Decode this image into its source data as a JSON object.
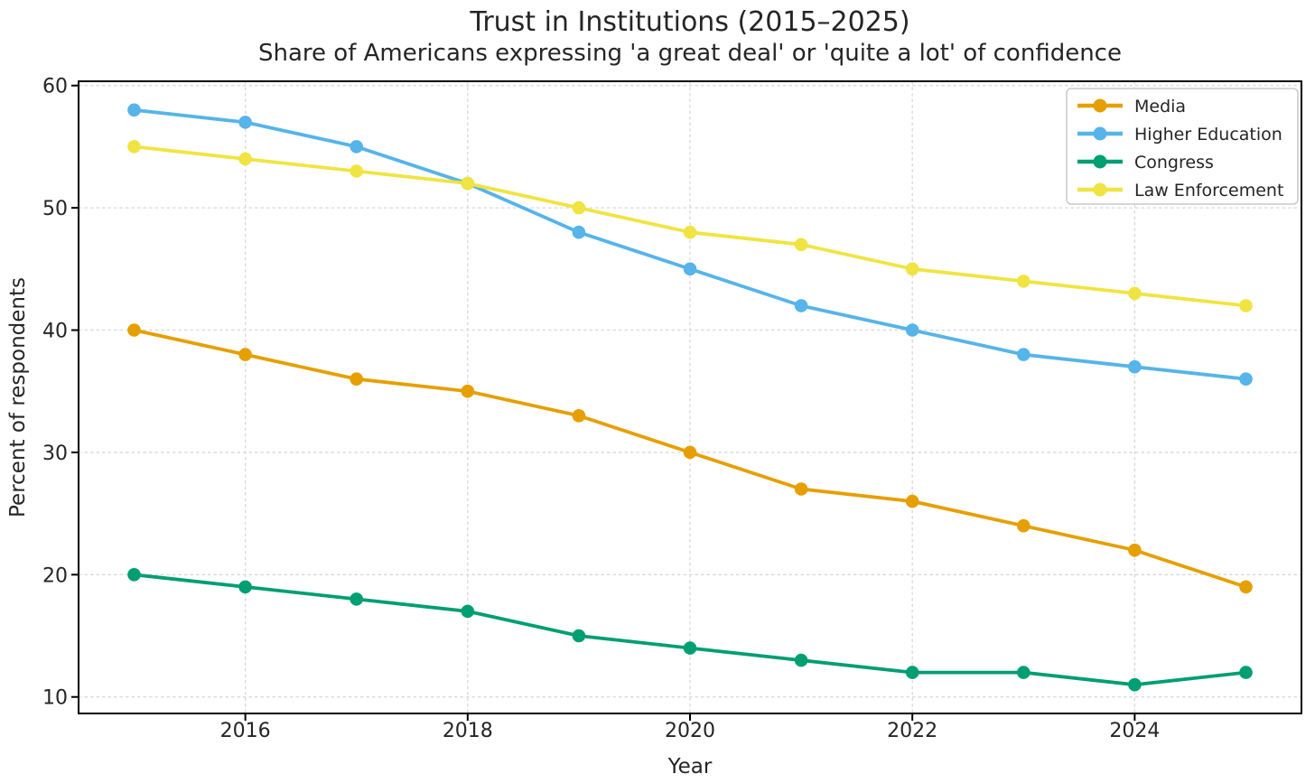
{
  "chart_data": {
    "type": "line",
    "title": "Trust in Institutions (2015–2025)",
    "subtitle": "Share of Americans expressing 'a great deal' or 'quite a lot' of confidence",
    "xlabel": "Year",
    "ylabel": "Percent of respondents",
    "x": [
      2015,
      2016,
      2017,
      2018,
      2019,
      2020,
      2021,
      2022,
      2023,
      2024,
      2025
    ],
    "series": [
      {
        "name": "Media",
        "color": "#E69F00",
        "values": [
          40,
          38,
          36,
          35,
          33,
          30,
          27,
          26,
          24,
          22,
          19
        ]
      },
      {
        "name": "Higher Education",
        "color": "#56B4E9",
        "values": [
          58,
          57,
          55,
          52,
          48,
          45,
          42,
          40,
          38,
          37,
          36
        ]
      },
      {
        "name": "Congress",
        "color": "#009E73",
        "values": [
          20,
          19,
          18,
          17,
          15,
          14,
          13,
          12,
          12,
          11,
          12
        ]
      },
      {
        "name": "Law Enforcement",
        "color": "#F0E442",
        "values": [
          55,
          54,
          53,
          52,
          50,
          48,
          47,
          45,
          44,
          43,
          42
        ]
      }
    ],
    "xlim": [
      2014.5,
      2025.5
    ],
    "ylim": [
      8.65,
      60.35
    ],
    "xticks": {
      "values": [
        2016,
        2018,
        2020,
        2022,
        2024
      ],
      "labels": [
        "2016",
        "2018",
        "2020",
        "2022",
        "2024"
      ]
    },
    "yticks": {
      "values": [
        10,
        20,
        30,
        40,
        50,
        60
      ],
      "labels": [
        "10",
        "20",
        "30",
        "40",
        "50",
        "60"
      ]
    },
    "grid": true,
    "legend_position": "upper right",
    "marker": "circle"
  },
  "style": {
    "background": "#ffffff",
    "grid_color": "#d8d8d8",
    "spine_color": "#000000",
    "text_color": "#252525",
    "legend_border": "#c9c9c9",
    "legend_fill": "#ffffff"
  }
}
